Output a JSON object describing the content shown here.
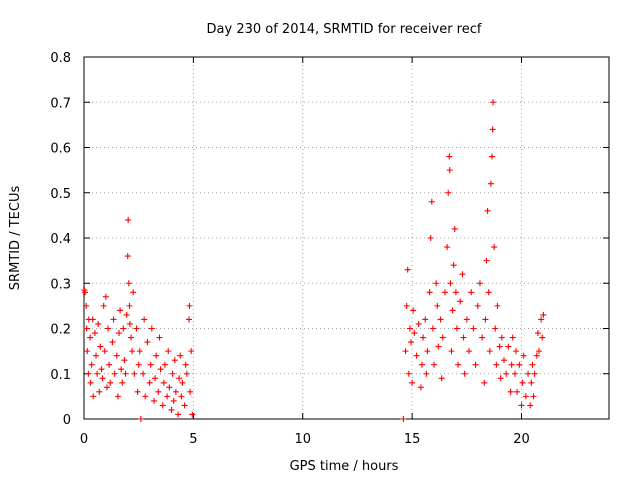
{
  "chart_data": {
    "type": "scatter",
    "title": "Day 230 of 2014, SRMTID for receiver recf",
    "xlabel": "GPS time / hours",
    "ylabel": "SRMTID / TECUs",
    "xlim": [
      0,
      24
    ],
    "ylim": [
      0,
      0.8
    ],
    "x_ticks": [
      0,
      5,
      10,
      15,
      20
    ],
    "y_ticks": [
      0,
      0.1,
      0.2,
      0.3,
      0.4,
      0.5,
      0.6,
      0.7,
      0.8
    ],
    "grid": true,
    "legend": "none",
    "marker": "+",
    "color": "#ff0000",
    "series": [
      {
        "name": "SRMTID",
        "points": [
          [
            0.02,
            0.285
          ],
          [
            0.05,
            0.28
          ],
          [
            0.1,
            0.25
          ],
          [
            0.12,
            0.2
          ],
          [
            0.15,
            0.15
          ],
          [
            0.2,
            0.1
          ],
          [
            0.22,
            0.22
          ],
          [
            0.28,
            0.18
          ],
          [
            0.3,
            0.08
          ],
          [
            0.35,
            0.12
          ],
          [
            0.4,
            0.22
          ],
          [
            0.42,
            0.05
          ],
          [
            0.5,
            0.19
          ],
          [
            0.55,
            0.14
          ],
          [
            0.6,
            0.1
          ],
          [
            0.65,
            0.21
          ],
          [
            0.7,
            0.06
          ],
          [
            0.75,
            0.16
          ],
          [
            0.8,
            0.11
          ],
          [
            0.85,
            0.09
          ],
          [
            0.9,
            0.25
          ],
          [
            0.95,
            0.15
          ],
          [
            1.0,
            0.27
          ],
          [
            1.05,
            0.07
          ],
          [
            1.1,
            0.2
          ],
          [
            1.15,
            0.12
          ],
          [
            1.2,
            0.08
          ],
          [
            1.3,
            0.17
          ],
          [
            1.35,
            0.22
          ],
          [
            1.4,
            0.1
          ],
          [
            1.5,
            0.14
          ],
          [
            1.55,
            0.05
          ],
          [
            1.6,
            0.19
          ],
          [
            1.65,
            0.24
          ],
          [
            1.7,
            0.11
          ],
          [
            1.75,
            0.08
          ],
          [
            1.8,
            0.2
          ],
          [
            1.85,
            0.13
          ],
          [
            1.9,
            0.1
          ],
          [
            1.95,
            0.23
          ],
          [
            2.0,
            0.36
          ],
          [
            2.02,
            0.44
          ],
          [
            2.05,
            0.3
          ],
          [
            2.08,
            0.25
          ],
          [
            2.1,
            0.21
          ],
          [
            2.15,
            0.18
          ],
          [
            2.2,
            0.15
          ],
          [
            2.25,
            0.28
          ],
          [
            2.3,
            0.1
          ],
          [
            2.4,
            0.2
          ],
          [
            2.45,
            0.06
          ],
          [
            2.5,
            0.12
          ],
          [
            2.55,
            0.15
          ],
          [
            2.6,
            0.0
          ],
          [
            2.7,
            0.1
          ],
          [
            2.75,
            0.22
          ],
          [
            2.8,
            0.05
          ],
          [
            2.9,
            0.17
          ],
          [
            3.0,
            0.08
          ],
          [
            3.05,
            0.12
          ],
          [
            3.1,
            0.2
          ],
          [
            3.2,
            0.04
          ],
          [
            3.25,
            0.09
          ],
          [
            3.3,
            0.14
          ],
          [
            3.4,
            0.06
          ],
          [
            3.45,
            0.18
          ],
          [
            3.5,
            0.11
          ],
          [
            3.6,
            0.03
          ],
          [
            3.65,
            0.08
          ],
          [
            3.7,
            0.12
          ],
          [
            3.8,
            0.05
          ],
          [
            3.85,
            0.15
          ],
          [
            3.9,
            0.07
          ],
          [
            4.0,
            0.02
          ],
          [
            4.05,
            0.1
          ],
          [
            4.1,
            0.04
          ],
          [
            4.15,
            0.13
          ],
          [
            4.2,
            0.06
          ],
          [
            4.3,
            0.01
          ],
          [
            4.35,
            0.09
          ],
          [
            4.4,
            0.14
          ],
          [
            4.45,
            0.05
          ],
          [
            4.5,
            0.08
          ],
          [
            4.6,
            0.03
          ],
          [
            4.65,
            0.12
          ],
          [
            4.7,
            0.1
          ],
          [
            4.8,
            0.22
          ],
          [
            4.82,
            0.25
          ],
          [
            4.85,
            0.06
          ],
          [
            4.9,
            0.15
          ],
          [
            4.95,
            0.01
          ],
          [
            14.6,
            0.0
          ],
          [
            14.7,
            0.15
          ],
          [
            14.75,
            0.25
          ],
          [
            14.8,
            0.33
          ],
          [
            14.85,
            0.1
          ],
          [
            14.9,
            0.2
          ],
          [
            14.95,
            0.17
          ],
          [
            15.0,
            0.08
          ],
          [
            15.05,
            0.24
          ],
          [
            15.1,
            0.19
          ],
          [
            15.2,
            0.14
          ],
          [
            15.3,
            0.21
          ],
          [
            15.4,
            0.07
          ],
          [
            15.45,
            0.12
          ],
          [
            15.5,
            0.18
          ],
          [
            15.6,
            0.22
          ],
          [
            15.65,
            0.1
          ],
          [
            15.7,
            0.15
          ],
          [
            15.8,
            0.28
          ],
          [
            15.85,
            0.4
          ],
          [
            15.9,
            0.48
          ],
          [
            15.95,
            0.2
          ],
          [
            16.0,
            0.12
          ],
          [
            16.1,
            0.3
          ],
          [
            16.15,
            0.25
          ],
          [
            16.2,
            0.16
          ],
          [
            16.3,
            0.22
          ],
          [
            16.35,
            0.09
          ],
          [
            16.4,
            0.18
          ],
          [
            16.5,
            0.28
          ],
          [
            16.6,
            0.38
          ],
          [
            16.65,
            0.5
          ],
          [
            16.7,
            0.58
          ],
          [
            16.72,
            0.55
          ],
          [
            16.75,
            0.3
          ],
          [
            16.8,
            0.15
          ],
          [
            16.85,
            0.24
          ],
          [
            16.9,
            0.34
          ],
          [
            16.95,
            0.42
          ],
          [
            17.0,
            0.28
          ],
          [
            17.05,
            0.2
          ],
          [
            17.1,
            0.12
          ],
          [
            17.2,
            0.26
          ],
          [
            17.3,
            0.32
          ],
          [
            17.35,
            0.18
          ],
          [
            17.4,
            0.1
          ],
          [
            17.5,
            0.22
          ],
          [
            17.6,
            0.15
          ],
          [
            17.7,
            0.28
          ],
          [
            17.8,
            0.2
          ],
          [
            17.9,
            0.12
          ],
          [
            18.0,
            0.25
          ],
          [
            18.1,
            0.3
          ],
          [
            18.2,
            0.18
          ],
          [
            18.3,
            0.08
          ],
          [
            18.35,
            0.22
          ],
          [
            18.4,
            0.35
          ],
          [
            18.45,
            0.46
          ],
          [
            18.5,
            0.28
          ],
          [
            18.55,
            0.15
          ],
          [
            18.6,
            0.52
          ],
          [
            18.65,
            0.58
          ],
          [
            18.68,
            0.64
          ],
          [
            18.7,
            0.7
          ],
          [
            18.75,
            0.38
          ],
          [
            18.8,
            0.2
          ],
          [
            18.85,
            0.12
          ],
          [
            18.9,
            0.25
          ],
          [
            19.0,
            0.16
          ],
          [
            19.05,
            0.09
          ],
          [
            19.1,
            0.18
          ],
          [
            19.2,
            0.13
          ],
          [
            19.3,
            0.1
          ],
          [
            19.4,
            0.16
          ],
          [
            19.5,
            0.06
          ],
          [
            19.55,
            0.12
          ],
          [
            19.6,
            0.18
          ],
          [
            19.7,
            0.1
          ],
          [
            19.75,
            0.15
          ],
          [
            19.8,
            0.06
          ],
          [
            19.9,
            0.12
          ],
          [
            20.0,
            0.03
          ],
          [
            20.05,
            0.08
          ],
          [
            20.1,
            0.14
          ],
          [
            20.2,
            0.05
          ],
          [
            20.3,
            0.1
          ],
          [
            20.4,
            0.03
          ],
          [
            20.45,
            0.08
          ],
          [
            20.5,
            0.12
          ],
          [
            20.55,
            0.05
          ],
          [
            20.6,
            0.1
          ],
          [
            20.7,
            0.14
          ],
          [
            20.75,
            0.19
          ],
          [
            20.8,
            0.15
          ],
          [
            20.9,
            0.22
          ],
          [
            20.95,
            0.18
          ],
          [
            21.0,
            0.23
          ]
        ]
      }
    ]
  }
}
